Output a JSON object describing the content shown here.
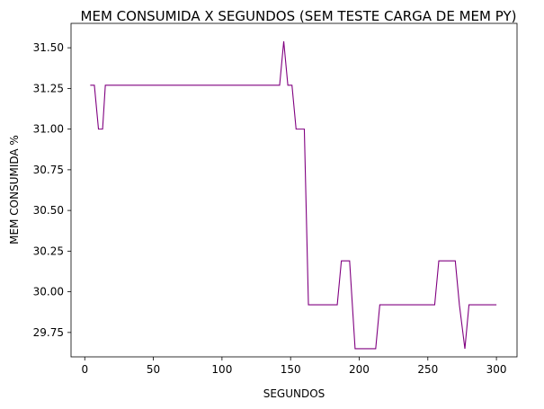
{
  "chart_data": {
    "type": "line",
    "title": "MEM CONSUMIDA X SEGUNDOS (SEM TESTE CARGA DE MEM PY)",
    "xlabel": "SEGUNDOS",
    "ylabel": "MEM CONSUMIDA %",
    "xlim": [
      -10,
      315
    ],
    "ylim": [
      29.6,
      31.65
    ],
    "xticks": [
      {
        "value": 0,
        "label": "0"
      },
      {
        "value": 50,
        "label": "50"
      },
      {
        "value": 100,
        "label": "100"
      },
      {
        "value": 150,
        "label": "150"
      },
      {
        "value": 200,
        "label": "200"
      },
      {
        "value": 250,
        "label": "250"
      },
      {
        "value": 300,
        "label": "300"
      }
    ],
    "yticks": [
      {
        "value": 29.75,
        "label": "29.75"
      },
      {
        "value": 30.0,
        "label": "30.00"
      },
      {
        "value": 30.25,
        "label": "30.25"
      },
      {
        "value": 30.5,
        "label": "30.50"
      },
      {
        "value": 30.75,
        "label": "30.75"
      },
      {
        "value": 31.0,
        "label": "31.00"
      },
      {
        "value": 31.25,
        "label": "31.25"
      },
      {
        "value": 31.5,
        "label": "31.50"
      }
    ],
    "grid": false,
    "legend": "none",
    "series": [
      {
        "color": "#800080",
        "x": [
          4,
          7,
          10,
          13,
          15,
          142,
          145,
          148,
          151,
          154,
          157,
          160,
          163,
          166,
          184,
          187,
          190,
          193,
          197,
          200,
          204,
          208,
          212,
          215,
          255,
          258,
          262,
          266,
          270,
          273,
          277,
          280,
          300
        ],
        "y": [
          31.27,
          31.27,
          31.0,
          31.0,
          31.27,
          31.27,
          31.54,
          31.27,
          31.27,
          31.0,
          31.0,
          31.0,
          29.92,
          29.92,
          29.92,
          30.19,
          30.19,
          30.19,
          29.65,
          29.65,
          29.65,
          29.65,
          29.65,
          29.92,
          29.92,
          30.19,
          30.19,
          30.19,
          30.19,
          29.92,
          29.65,
          29.92,
          29.92
        ]
      }
    ]
  }
}
